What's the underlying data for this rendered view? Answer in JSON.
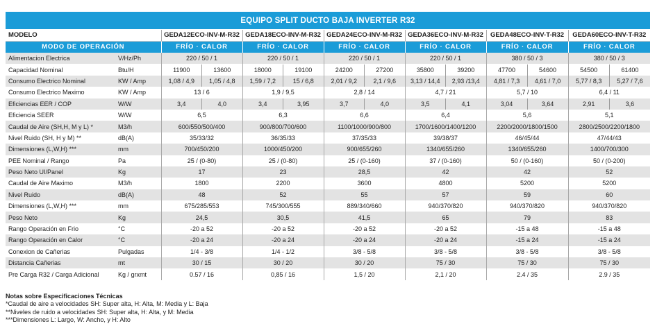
{
  "title": "EQUIPO SPLIT DUCTO BAJA INVERTER R32",
  "header": {
    "label": "MODELO",
    "models": [
      "GEDA12ECO-INV-M-R32",
      "GEDA18ECO-INV-M-R32",
      "GEDA24ECO-INV-M-R32",
      "GEDA36ECO-INV-M-R32",
      "GEDA48ECO-INV-T-R32",
      "GEDA60ECO-INV-T-R32"
    ]
  },
  "mode_row": {
    "label": "MODO DE OPERACIÓN",
    "modes": [
      "FRÍO  ·  CALOR",
      "FRÍO  ·  CALOR",
      "FRÍO  ·  CALOR",
      "FRÍO  ·  CALOR",
      "FRÍO  ·  CALOR",
      "FRÍO  ·  CALOR"
    ]
  },
  "rows": [
    {
      "param": "Alimentacion Electrica",
      "unit": "V/Hz/Ph",
      "values": [
        "220 / 50 / 1",
        "220 / 50 / 1",
        "220 / 50 / 1",
        "220 / 50 / 1",
        "380 / 50 / 3",
        "380 / 50 / 3"
      ]
    },
    {
      "param": "Capacidad Nominal",
      "unit": "Btu/H",
      "values": [
        [
          "11900",
          "13600"
        ],
        [
          "18000",
          "19100"
        ],
        [
          "24200",
          "27200"
        ],
        [
          "35800",
          "39200"
        ],
        [
          "47700",
          "54600"
        ],
        [
          "54500",
          "61400"
        ]
      ]
    },
    {
      "param": "Consumo Electrico Nominal",
      "unit": "KW / Amp",
      "values": [
        [
          "1,08 / 4,9",
          "1,05 / 4,8"
        ],
        [
          "1,59 / 7,2",
          "15 / 6,8"
        ],
        [
          "2,01 / 9,2",
          "2,1 / 9,6"
        ],
        [
          "3,13 / 14,4",
          "2,93 /13,4"
        ],
        [
          "4,81 / 7,3",
          "4,61 / 7,0"
        ],
        [
          "5,77 / 8,3",
          "5,27 / 7,6"
        ]
      ]
    },
    {
      "param": "Consumo Electrico Maximo",
      "unit": "KW / Amp",
      "values": [
        "13 / 6",
        "1,9 / 9,5",
        "2,8 / 14",
        "4,7 / 21",
        "5,7 / 10",
        "6,4 / 11"
      ]
    },
    {
      "param": "Eficiencias EER / COP",
      "unit": "W/W",
      "values": [
        [
          "3,4",
          "4,0"
        ],
        [
          "3,4",
          "3,95"
        ],
        [
          "3,7",
          "4,0"
        ],
        [
          "3,5",
          "4,1"
        ],
        [
          "3,04",
          "3,64"
        ],
        [
          "2,91",
          "3,6"
        ]
      ]
    },
    {
      "param": "Eficiencia SEER",
      "unit": "W/W",
      "values": [
        "6,5",
        "6,3",
        "6,6",
        "6,4",
        "5,6",
        "5,1"
      ]
    },
    {
      "param": "Caudal de Aire (SH,H, M y L) *",
      "unit": "M3/h",
      "values": [
        "600/550/500/400",
        "900/800/700/600",
        "1100/1000/900/800",
        "1700/1600/1400/1200",
        "2200/2000/1800/1500",
        "2800/2500/2200/1800"
      ]
    },
    {
      "param": "Nivel Ruido (SH, H y M) **",
      "unit": "dB(A)",
      "values": [
        "35/33/32",
        "36/35/33",
        "37/35/33",
        "39/38/37",
        "46/45/44",
        "47/44/43"
      ]
    },
    {
      "param": "Dimensiones (L,W,H) ***",
      "unit": "mm",
      "values": [
        "700/450/200",
        "1000/450/200",
        "900/655/260",
        "1340/655/260",
        "1340/655/260",
        "1400/700/300"
      ]
    },
    {
      "param": "PEE Nominal / Rango",
      "unit": "Pa",
      "values": [
        "25 / (0-80)",
        "25 / (0-80)",
        "25 / (0-160)",
        "37 / (0-160)",
        "50 / (0-160)",
        "50 / (0-200)"
      ]
    },
    {
      "param": "Peso Neto UI/Panel",
      "unit": "Kg",
      "values": [
        "17",
        "23",
        "28,5",
        "42",
        "42",
        "52"
      ]
    },
    {
      "param": "Caudal de Aire Maximo",
      "unit": "M3/h",
      "values": [
        "1800",
        "2200",
        "3600",
        "4800",
        "5200",
        "5200"
      ]
    },
    {
      "param": "Nivel Ruido",
      "unit": "dB(A)",
      "values": [
        "48",
        "52",
        "55",
        "57",
        "59",
        "60"
      ]
    },
    {
      "param": "Dimensiones (L,W,H) ***",
      "unit": "mm",
      "values": [
        "675/285/553",
        "745/300/555",
        "889/340/660",
        "940/370/820",
        "940/370/820",
        "940/370/820"
      ]
    },
    {
      "param": "Peso Neto",
      "unit": "Kg",
      "values": [
        "24,5",
        "30,5",
        "41,5",
        "65",
        "79",
        "83"
      ]
    },
    {
      "param": "Rango Operación en Frio",
      "unit": "°C",
      "values": [
        "-20 a 52",
        "-20 a 52",
        "-20 a 52",
        "-20 a 52",
        "-15 a 48",
        "-15 a 48"
      ]
    },
    {
      "param": "Rango Operación en Calor",
      "unit": "°C",
      "values": [
        "-20 a 24",
        "-20 a 24",
        "-20 a 24",
        "-20 a 24",
        "-15 a 24",
        "-15 a 24"
      ]
    },
    {
      "param": "Conexion de Cañerias",
      "unit": "Pulgadas",
      "values": [
        "1/4  -  3/8",
        "1/4  -  1/2",
        "3/8  -  5/8",
        "3/8  -  5/8",
        "3/8  -  5/8",
        "3/8  -  5/8"
      ]
    },
    {
      "param": "Distancia Cañerias",
      "unit": "mt",
      "values": [
        "30 / 15",
        "30 / 20",
        "30 / 20",
        "75 / 30",
        "75 / 30",
        "75 / 30"
      ]
    },
    {
      "param": "Pre Carga R32 / Carga Adicional",
      "unit": "Kg / grxmt",
      "values": [
        "0.57 / 16",
        "0,85 / 16",
        "1,5 / 20",
        "2,1 / 20",
        "2.4 / 35",
        "2.9 / 35"
      ]
    }
  ],
  "notes": {
    "title": "Notas sobre Especificaciones Técnicas",
    "lines": [
      "*Caudal de aire a velocidades SH: Super alta, H: Alta, M: Media y L: Baja",
      "**Niveles de ruido a velocidades SH: Super alta, H: Alta, y M: Media",
      "***Dimensiones L: Largo, W: Ancho, y H: Alto"
    ]
  },
  "colors": {
    "accent": "#1b9cd8",
    "row_shade": "#e3e3e3"
  }
}
